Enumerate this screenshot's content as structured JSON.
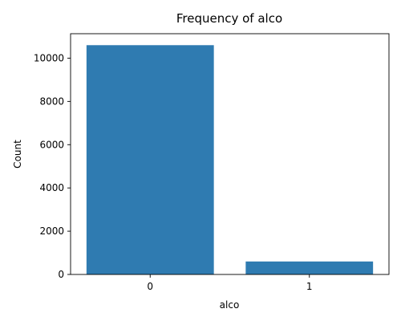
{
  "chart_data": {
    "type": "bar",
    "title": "Frequency of alco",
    "xlabel": "alco",
    "ylabel": "Count",
    "categories": [
      "0",
      "1"
    ],
    "values": [
      10600,
      600
    ],
    "ylim": [
      0,
      11130
    ],
    "yticks": [
      0,
      2000,
      4000,
      6000,
      8000,
      10000
    ],
    "grid": false,
    "bar_color": "#2f7bb1"
  }
}
